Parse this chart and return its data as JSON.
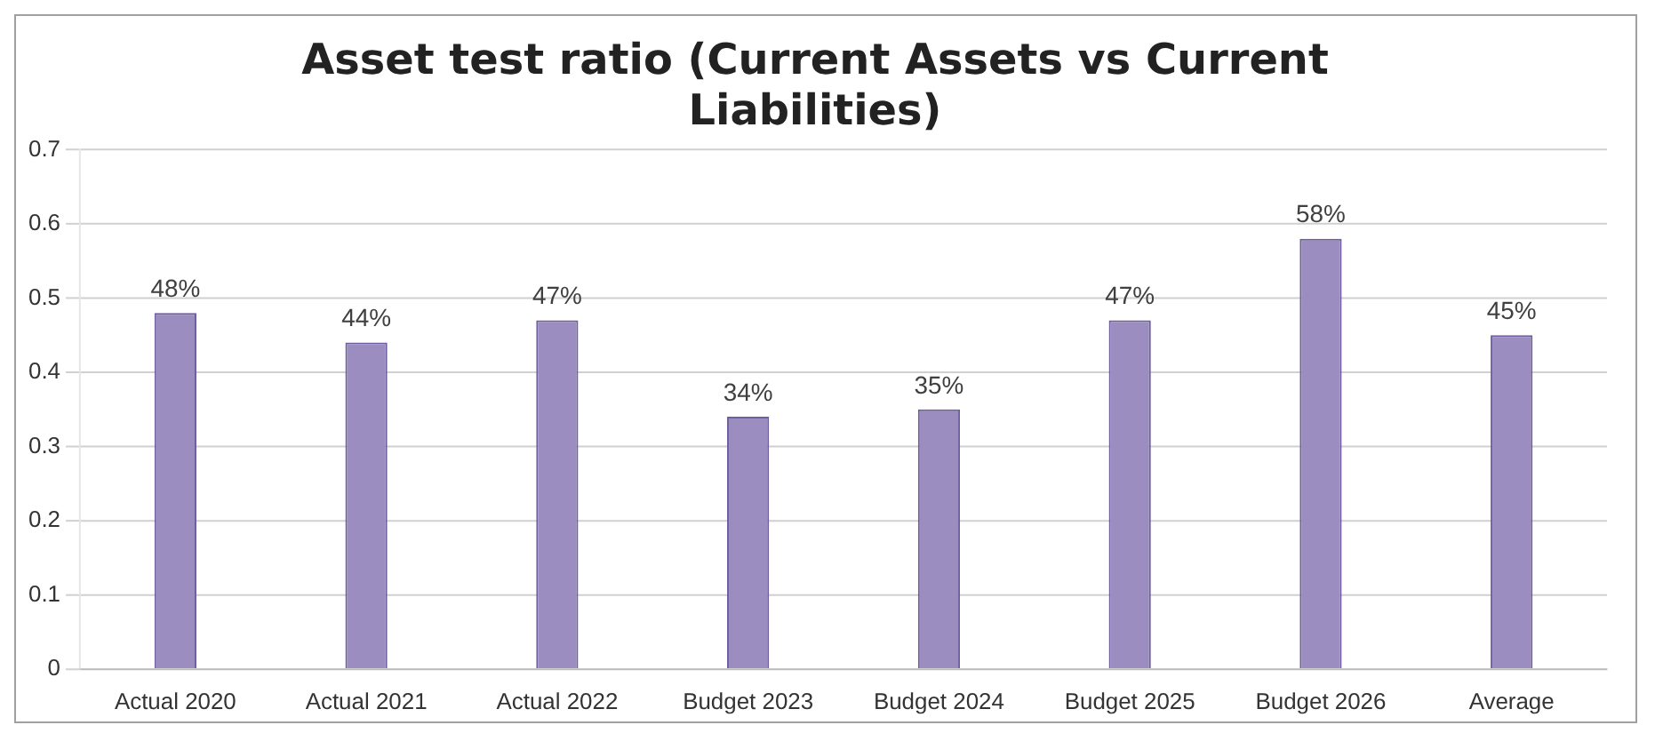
{
  "chart_data": {
    "type": "bar",
    "title": "Asset test ratio (Current Assets vs Current Liabilities)",
    "categories": [
      "Actual 2020",
      "Actual 2021",
      "Actual 2022",
      "Budget 2023",
      "Budget 2024",
      "Budget 2025",
      "Budget 2026",
      "Average"
    ],
    "values": [
      0.48,
      0.44,
      0.47,
      0.34,
      0.35,
      0.47,
      0.58,
      0.45
    ],
    "value_labels": [
      "48%",
      "44%",
      "47%",
      "34%",
      "35%",
      "47%",
      "58%",
      "45%"
    ],
    "color": "#9b8dc0",
    "ylim": [
      0,
      0.7
    ],
    "yticks": [
      0,
      0.1,
      0.2,
      0.3,
      0.4,
      0.5,
      0.6,
      0.7
    ],
    "grid": "y"
  }
}
